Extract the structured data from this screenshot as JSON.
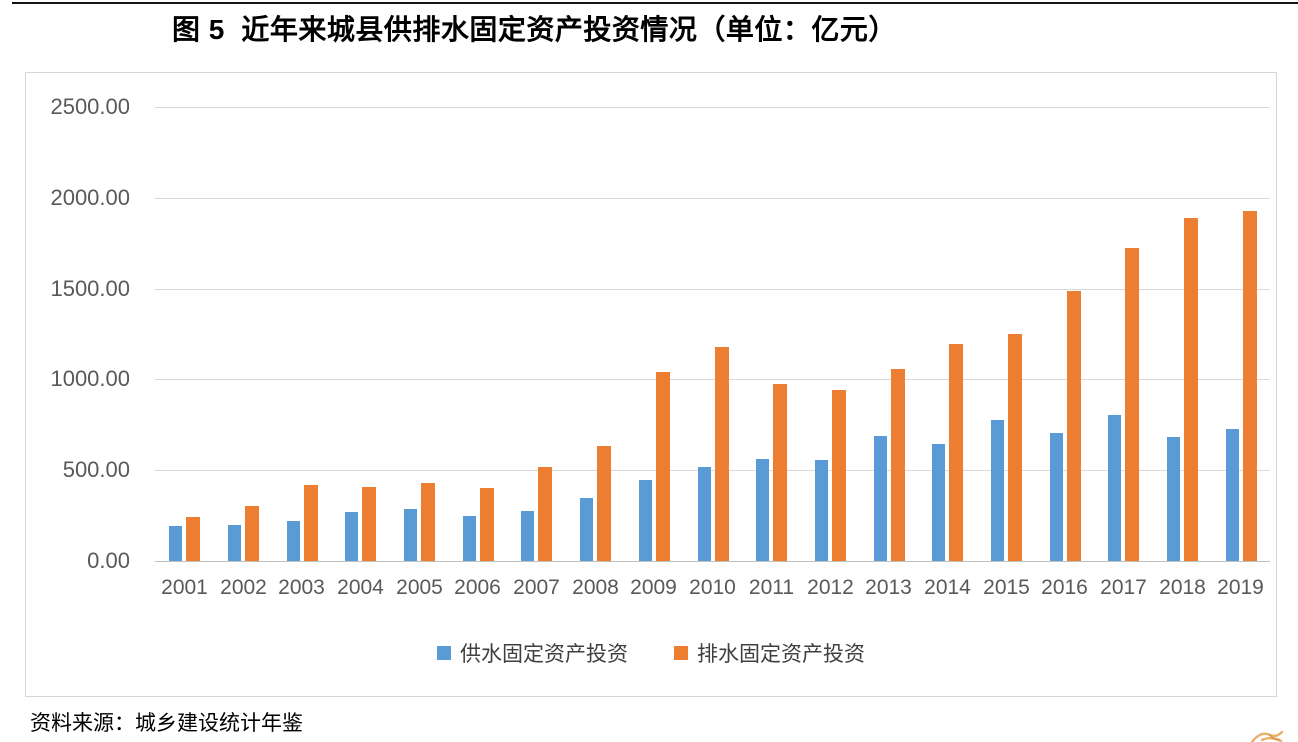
{
  "page": {
    "title": "图 5  近年来城县供排水固定资产投资情况（单位：亿元）",
    "source": "资料来源：城乡建设统计年鉴"
  },
  "chart_data": {
    "type": "bar",
    "title": "图 5  近年来城县供排水固定资产投资情况（单位：亿元）",
    "unit": "亿元",
    "categories": [
      "2001",
      "2002",
      "2003",
      "2004",
      "2005",
      "2006",
      "2007",
      "2008",
      "2009",
      "2010",
      "2011",
      "2012",
      "2013",
      "2014",
      "2015",
      "2016",
      "2017",
      "2018",
      "2019"
    ],
    "series": [
      {
        "name": "供水固定资产投资",
        "color": "#5B9BD5",
        "values": [
          195,
          200,
          220,
          270,
          285,
          250,
          275,
          345,
          445,
          515,
          560,
          555,
          690,
          645,
          775,
          705,
          805,
          685,
          725
        ]
      },
      {
        "name": "排水固定资产投资",
        "color": "#ED7D31",
        "values": [
          245,
          305,
          420,
          405,
          430,
          400,
          515,
          635,
          1040,
          1180,
          975,
          940,
          1055,
          1195,
          1250,
          1485,
          1725,
          1890,
          1925
        ]
      }
    ],
    "ylim": [
      0,
      2500
    ],
    "ytick_values": [
      0,
      500,
      1000,
      1500,
      2000,
      2500
    ],
    "ytick_labels": [
      "0.00",
      "500.00",
      "1000.00",
      "1500.00",
      "2000.00",
      "2500.00"
    ],
    "grid": true,
    "legend_position": "bottom",
    "colors": {
      "gridline": "#D9D9D9",
      "axis_line": "#C0C0C0",
      "tick_label": "#595959",
      "legend_text": "#3F3F3F",
      "plot_border": "#D6D6D6",
      "watermark": "#E09A3E"
    }
  }
}
